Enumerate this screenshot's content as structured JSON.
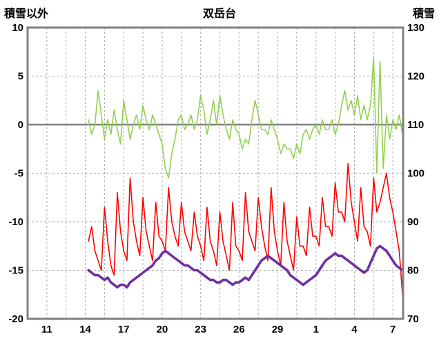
{
  "title": "双岳台",
  "left_axis_title": "積雪以外",
  "right_axis_title": "積雪",
  "colors": {
    "green_series": "#92D050",
    "red_series": "#FF0000",
    "purple_series": "#7030A0",
    "grid": "#ABABAB",
    "zero_line": "#7F7F7F",
    "border": "#808080",
    "text": "#000000"
  },
  "chart_data": {
    "type": "line",
    "title": "双岳台",
    "x_domain": [
      9.5,
      38.8
    ],
    "x_ticks": [
      {
        "d": 11,
        "label": "11"
      },
      {
        "d": 14,
        "label": "14"
      },
      {
        "d": 17,
        "label": "17"
      },
      {
        "d": 20,
        "label": "20"
      },
      {
        "d": 23,
        "label": "23"
      },
      {
        "d": 26,
        "label": "26"
      },
      {
        "d": 29,
        "label": "29"
      },
      {
        "d": 32,
        "label": "1"
      },
      {
        "d": 35,
        "label": "4"
      },
      {
        "d": 38,
        "label": "7"
      }
    ],
    "x_grid_start": 11,
    "x_grid_end": 38,
    "x_grid_step": 1.5,
    "y_left": {
      "label": "積雪以外",
      "min": -20,
      "max": 10,
      "tick_step": 5,
      "tick_labels": [
        "10",
        "5",
        "0",
        "-5",
        "-10",
        "-15",
        "-20"
      ]
    },
    "y_right": {
      "label": "積雪",
      "min": 70,
      "max": 130,
      "tick_step": 10,
      "tick_labels": [
        "130",
        "120",
        "110",
        "100",
        "90",
        "80",
        "70"
      ]
    },
    "zero_line": 0,
    "grid": true,
    "legend": "none",
    "x_start": 14.25,
    "x_step": 0.25,
    "x_count": 99,
    "series": [
      {
        "name": "green-series",
        "axis": "left",
        "color": "#92D050",
        "width": 1.6,
        "values": [
          0.5,
          -1,
          0,
          3.5,
          1,
          -1.5,
          0.5,
          -1,
          1.5,
          -0.5,
          -2,
          2.5,
          0.5,
          -1.5,
          0,
          1,
          -0.5,
          2,
          0.5,
          -0.5,
          1,
          0,
          -1,
          -2,
          -4.5,
          -5.5,
          -3,
          -1.5,
          0.5,
          1,
          -0.5,
          0,
          1,
          -0.5,
          0.5,
          3,
          1.5,
          -1,
          0.5,
          2.5,
          0,
          3,
          1,
          -0.5,
          -1.5,
          0.5,
          -0.5,
          -1,
          -2.5,
          -1.5,
          -2,
          0.5,
          2.5,
          1,
          -0.5,
          -0.5,
          -1,
          0.5,
          -0.5,
          -1.5,
          -3,
          -2,
          -2.5,
          -2.5,
          -3.5,
          -2,
          -3,
          -1,
          -0.5,
          -1.5,
          -0.5,
          0,
          -1,
          0.5,
          -0.5,
          -0.5,
          0.5,
          -1,
          0,
          2,
          3.5,
          1.5,
          2.5,
          1,
          3,
          0.5,
          2,
          0.5,
          2,
          7,
          -5,
          6.5,
          -4.5,
          1,
          -1.5,
          0.5,
          -0.5,
          1,
          -1
        ]
      },
      {
        "name": "red-series",
        "axis": "left",
        "color": "#FF0000",
        "width": 1.6,
        "values": [
          -12,
          -10.5,
          -13,
          -14,
          -15,
          -8.5,
          -12,
          -14.5,
          -15.5,
          -7,
          -11,
          -13,
          -14,
          -5.5,
          -10,
          -12,
          -13.5,
          -7.5,
          -11,
          -12.5,
          -14,
          -8,
          -11.5,
          -12,
          -13,
          -6.5,
          -10,
          -11.5,
          -12.5,
          -8,
          -11,
          -12,
          -13,
          -9,
          -11.5,
          -12.5,
          -14,
          -8.5,
          -12,
          -13,
          -14.5,
          -9,
          -12,
          -13.5,
          -15,
          -8,
          -12.5,
          -13,
          -14,
          -7,
          -11,
          -12,
          -13,
          -7.5,
          -10.5,
          -12.5,
          -14,
          -6.5,
          -11,
          -13,
          -14.5,
          -8,
          -12,
          -13.5,
          -15,
          -9.5,
          -12.5,
          -12.5,
          -13.5,
          -8.5,
          -11.5,
          -11.5,
          -12.5,
          -7.5,
          -10.5,
          -10.5,
          -11.5,
          -6,
          -9,
          -9,
          -10,
          -4,
          -8,
          -10,
          -12,
          -6.5,
          -10.5,
          -11,
          -12.5,
          -5.5,
          -9,
          -8,
          -6.5,
          -5,
          -7.5,
          -9,
          -11,
          -13,
          -17.5
        ]
      },
      {
        "name": "purple-series",
        "axis": "right",
        "color": "#7030A0",
        "width": 3.6,
        "values": [
          80,
          79.5,
          79,
          79,
          78.5,
          78,
          78.5,
          77.5,
          77,
          76.5,
          77,
          77,
          76.5,
          77.5,
          78,
          78.5,
          79,
          79.5,
          80,
          80.5,
          81,
          82,
          82.5,
          83.5,
          84,
          83.5,
          83,
          82.5,
          82,
          81.5,
          81,
          81,
          80.5,
          80,
          80,
          79.5,
          79,
          78.5,
          78,
          78,
          77.5,
          77.5,
          78,
          78,
          77.5,
          77,
          77.5,
          77.5,
          78,
          78.5,
          78,
          79,
          80,
          81,
          82,
          82.5,
          83,
          82.5,
          82,
          81.5,
          81,
          80.5,
          80,
          79,
          78.5,
          78,
          77.5,
          77,
          77.5,
          78,
          78.5,
          79,
          80,
          81,
          82,
          82.5,
          83,
          83.5,
          83,
          83,
          82.5,
          82,
          81.5,
          81,
          80.5,
          80,
          79.5,
          80,
          81.5,
          83,
          84.5,
          85,
          84.5,
          84,
          83,
          82,
          81,
          80.5,
          80
        ]
      }
    ]
  }
}
